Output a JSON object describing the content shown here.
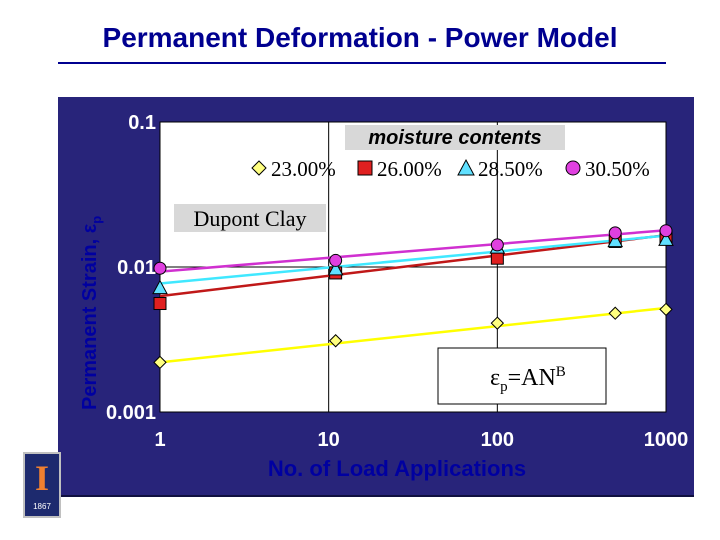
{
  "slide": {
    "title": "Permanent Deformation - Power Model"
  },
  "logo": {
    "mark": "I",
    "year": "1867"
  },
  "chart_data": {
    "type": "line",
    "x_scale": "log",
    "y_scale": "log",
    "xlabel": "No. of Load Applications",
    "ylabel_main": "Permanent Strain, ε",
    "ylabel_sub": "p",
    "xlim": [
      1,
      1000
    ],
    "ylim": [
      0.001,
      0.1
    ],
    "x_ticks": [
      {
        "value": 1,
        "label": "1"
      },
      {
        "value": 10,
        "label": "10"
      },
      {
        "value": 100,
        "label": "100"
      },
      {
        "value": 1000,
        "label": "1000"
      }
    ],
    "y_ticks": [
      {
        "value": 0.001,
        "label": "0.001"
      },
      {
        "value": 0.01,
        "label": "0.01"
      },
      {
        "value": 0.1,
        "label": "0.1"
      }
    ],
    "legend_title": "moisture contents",
    "annotation": "Dupont Clay",
    "formula": {
      "epsilon": "ε",
      "sub": "p",
      "eq": "=AN",
      "sup": "B"
    },
    "series": [
      {
        "name": "23.00%",
        "marker": "diamond",
        "color": "#ffff00",
        "fill": "#ffff80",
        "x": [
          1,
          11,
          100,
          500,
          1000
        ],
        "y": [
          0.0022,
          0.0031,
          0.0041,
          0.0048,
          0.0051
        ],
        "fit": {
          "A": 0.0022,
          "B": 0.125
        }
      },
      {
        "name": "26.00%",
        "marker": "square",
        "color": "#c01818",
        "fill": "#e02020",
        "x": [
          1,
          11,
          100,
          500,
          1000
        ],
        "y": [
          0.0056,
          0.0091,
          0.0115,
          0.015,
          0.0162
        ],
        "fit": {
          "A": 0.0063,
          "B": 0.14
        }
      },
      {
        "name": "28.50%",
        "marker": "triangle",
        "color": "#40e8ff",
        "fill": "#60e0ff",
        "x": [
          1,
          11,
          100,
          500,
          1000
        ],
        "y": [
          0.0072,
          0.0097,
          0.0137,
          0.0152,
          0.0155
        ],
        "fit": {
          "A": 0.0077,
          "B": 0.11
        }
      },
      {
        "name": "30.50%",
        "marker": "circle",
        "color": "#d030d0",
        "fill": "#e040e0",
        "x": [
          1,
          11,
          100,
          500,
          1000
        ],
        "y": [
          0.0098,
          0.0111,
          0.0142,
          0.0172,
          0.0178
        ],
        "fit": {
          "A": 0.0093,
          "B": 0.095
        }
      }
    ]
  }
}
